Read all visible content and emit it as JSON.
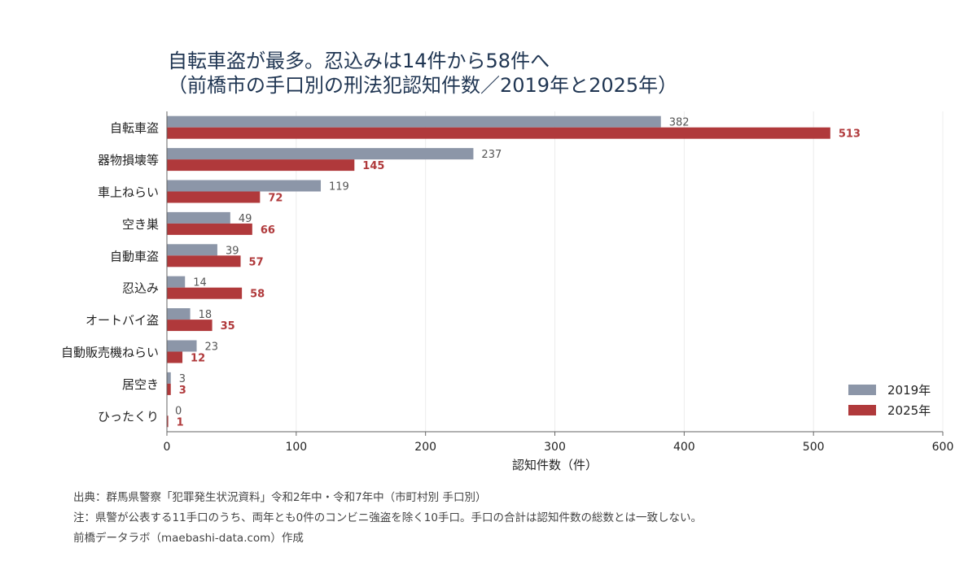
{
  "chart_data": {
    "type": "bar",
    "orientation": "horizontal",
    "title_lines": [
      "自転車盗が最多。忍込みは14件から58件へ",
      "（前橋市の手口別の刑法犯認知件数／2019年と2025年）"
    ],
    "xlabel": "認知件数（件）",
    "ylabel": "",
    "xlim": [
      0,
      600
    ],
    "xticks": [
      0,
      100,
      200,
      300,
      400,
      500,
      600
    ],
    "categories": [
      "自転車盗",
      "器物損壊等",
      "車上ねらい",
      "空き巣",
      "自動車盗",
      "忍込み",
      "オートバイ盗",
      "自動販売機ねらい",
      "居空き",
      "ひったくり"
    ],
    "series": [
      {
        "name": "2019年",
        "color": "#8c96a8",
        "values": [
          382,
          237,
          119,
          49,
          39,
          14,
          18,
          23,
          3,
          0
        ]
      },
      {
        "name": "2025年",
        "color": "#b0393b",
        "values": [
          513,
          145,
          72,
          66,
          57,
          58,
          35,
          12,
          3,
          1
        ]
      }
    ],
    "legend_position": "bottom-right",
    "grid": "vertical"
  },
  "notes": [
    "出典：群馬県警察「犯罪発生状況資料」令和2年中・令和7年中（市町村別 手口別）",
    "注：県警が公表する11手口のうち、両年とも0件のコンビニ強盗を除く10手口。手口の合計は認知件数の総数とは一致しない。",
    "前橋データラボ（maebashi-data.com）作成"
  ]
}
